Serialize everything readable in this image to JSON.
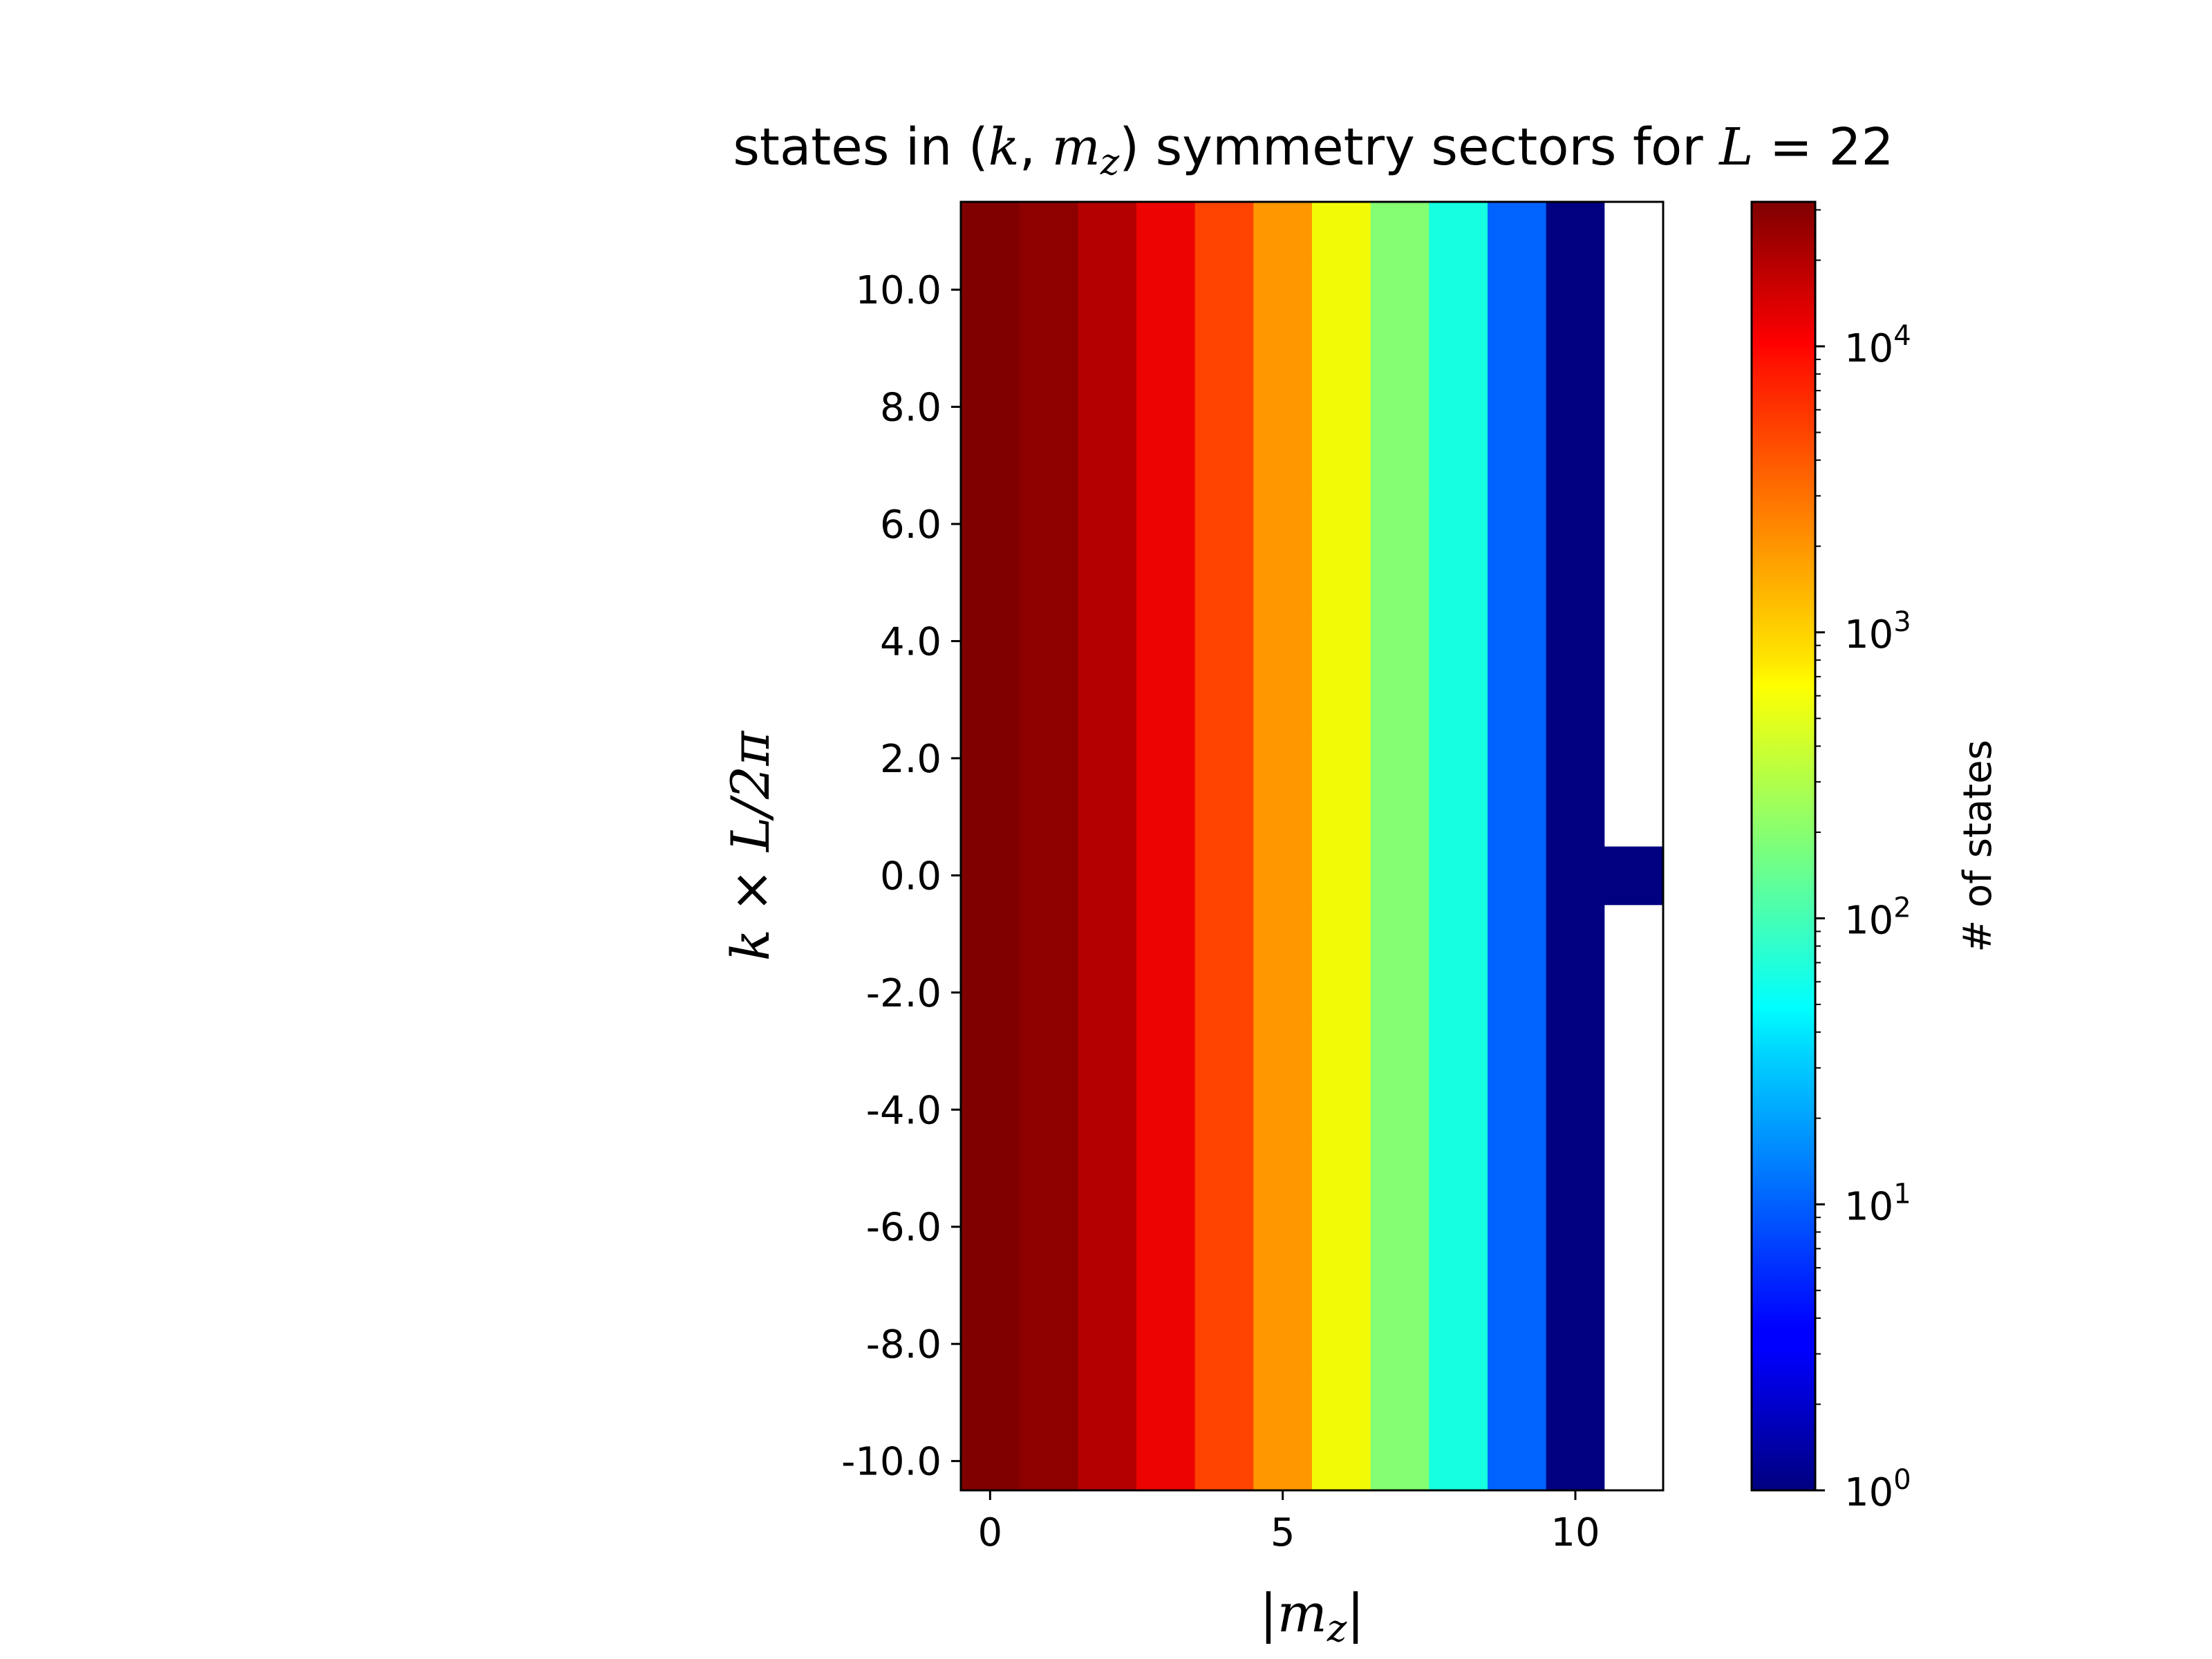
{
  "chart_data": {
    "type": "heatmap",
    "title": {
      "prefix": "states in (",
      "k": "k",
      "comma": ", ",
      "m": "m",
      "m_sub": "z",
      "mid": ") symmetry sectors for ",
      "L": "L",
      "eq": " = 22"
    },
    "xlabel": {
      "bar1": "|",
      "m": "m",
      "sub": "z",
      "bar2": "|"
    },
    "ylabel": {
      "k": "k",
      "times": " × ",
      "L": "L",
      "rest": "/2",
      "pi": "π"
    },
    "colorbar_label": "# of states",
    "colormap": "jet",
    "colorbar_scale": "log",
    "colorbar_range": [
      1,
      32000
    ],
    "colorbar_ticks": [
      {
        "base": "10",
        "exp": "0",
        "value": 1
      },
      {
        "base": "10",
        "exp": "1",
        "value": 10
      },
      {
        "base": "10",
        "exp": "2",
        "value": 100
      },
      {
        "base": "10",
        "exp": "3",
        "value": 1000
      },
      {
        "base": "10",
        "exp": "4",
        "value": 10000
      }
    ],
    "x_ticks": [
      {
        "label": "0",
        "value": 0
      },
      {
        "label": "5",
        "value": 5
      },
      {
        "label": "10",
        "value": 10
      }
    ],
    "y_ticks": [
      {
        "label": "10.0",
        "value": 10
      },
      {
        "label": "8.0",
        "value": 8
      },
      {
        "label": "6.0",
        "value": 6
      },
      {
        "label": "4.0",
        "value": 4
      },
      {
        "label": "2.0",
        "value": 2
      },
      {
        "label": "0.0",
        "value": 0
      },
      {
        "label": "-2.0",
        "value": -2
      },
      {
        "label": "-4.0",
        "value": -4
      },
      {
        "label": "-6.0",
        "value": -6
      },
      {
        "label": "-8.0",
        "value": -8
      },
      {
        "label": "-10.0",
        "value": -10
      }
    ],
    "xlim": [
      -0.5,
      11.5
    ],
    "ylim": [
      -10.5,
      11.5
    ],
    "grid": false,
    "x": [
      0,
      1,
      2,
      3,
      4,
      5,
      6,
      7,
      8,
      9,
      10,
      11
    ],
    "y": [
      -10,
      -9,
      -8,
      -7,
      -6,
      -5,
      -4,
      -3,
      -2,
      -1,
      0,
      1,
      2,
      3,
      4,
      5,
      6,
      7,
      8,
      9,
      10,
      11
    ],
    "column_values": [
      32000,
      28000,
      20000,
      12000,
      6000,
      2400,
      800,
      200,
      50,
      10,
      1,
      0
    ],
    "k0_values": [
      32000,
      28000,
      20000,
      12000,
      6000,
      2400,
      800,
      200,
      50,
      10,
      1,
      1
    ],
    "empty_color": "#ffffff"
  }
}
